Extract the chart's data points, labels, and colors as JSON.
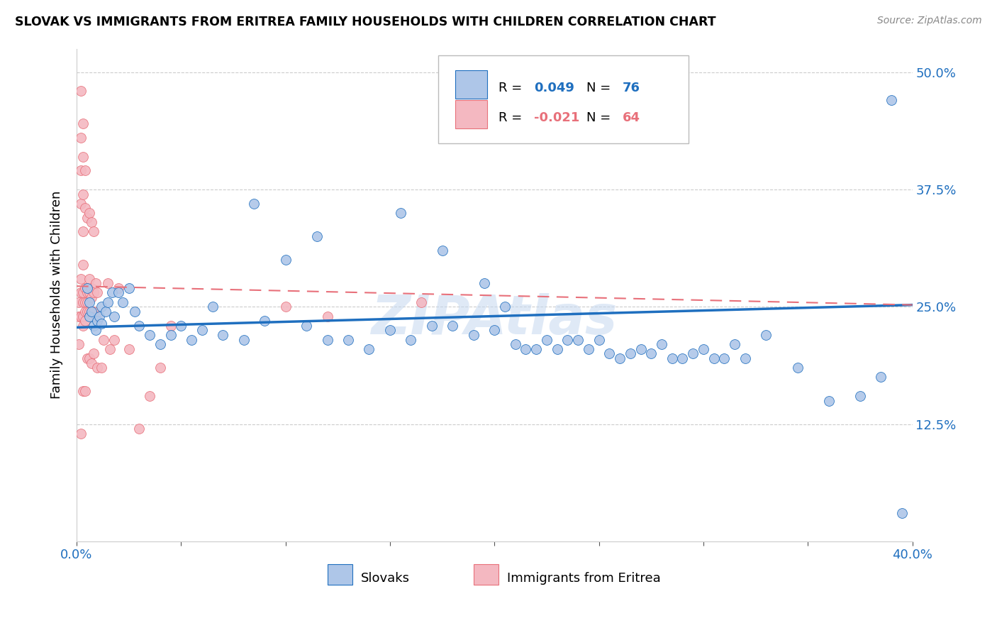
{
  "title": "SLOVAK VS IMMIGRANTS FROM ERITREA FAMILY HOUSEHOLDS WITH CHILDREN CORRELATION CHART",
  "source": "Source: ZipAtlas.com",
  "ylabel": "Family Households with Children",
  "xlabel_slovaks": "Slovaks",
  "xlabel_eritrea": "Immigrants from Eritrea",
  "xlim": [
    0.0,
    0.4
  ],
  "ylim": [
    0.0,
    0.525
  ],
  "yticks": [
    0.125,
    0.25,
    0.375,
    0.5
  ],
  "ytick_labels": [
    "12.5%",
    "25.0%",
    "37.5%",
    "50.0%"
  ],
  "xtick_positions": [
    0.0,
    0.05,
    0.1,
    0.15,
    0.2,
    0.25,
    0.3,
    0.35,
    0.4
  ],
  "xtick_labels": [
    "0.0%",
    "",
    "",
    "",
    "",
    "",
    "",
    "",
    "40.0%"
  ],
  "R_slovak": 0.049,
  "N_slovak": 76,
  "R_eritrea": -0.021,
  "N_eritrea": 64,
  "color_slovak": "#aec6e8",
  "color_eritrea": "#f4b8c1",
  "line_color_slovak": "#1f6fbf",
  "line_color_eritrea": "#e8707a",
  "watermark": "ZIPAtlas",
  "sk_trend_y0": 0.228,
  "sk_trend_y1": 0.252,
  "er_trend_y0": 0.272,
  "er_trend_y1": 0.252,
  "slovak_x": [
    0.005,
    0.006,
    0.006,
    0.007,
    0.008,
    0.009,
    0.01,
    0.011,
    0.012,
    0.012,
    0.014,
    0.015,
    0.017,
    0.018,
    0.02,
    0.022,
    0.025,
    0.028,
    0.03,
    0.035,
    0.04,
    0.045,
    0.05,
    0.055,
    0.06,
    0.065,
    0.07,
    0.08,
    0.085,
    0.09,
    0.1,
    0.11,
    0.115,
    0.12,
    0.13,
    0.14,
    0.15,
    0.155,
    0.16,
    0.17,
    0.175,
    0.18,
    0.19,
    0.195,
    0.2,
    0.205,
    0.21,
    0.215,
    0.22,
    0.225,
    0.23,
    0.235,
    0.24,
    0.245,
    0.25,
    0.255,
    0.26,
    0.265,
    0.27,
    0.275,
    0.28,
    0.285,
    0.29,
    0.295,
    0.3,
    0.305,
    0.31,
    0.315,
    0.32,
    0.33,
    0.345,
    0.36,
    0.375,
    0.385,
    0.39,
    0.395
  ],
  "slovak_y": [
    0.27,
    0.255,
    0.24,
    0.245,
    0.23,
    0.225,
    0.235,
    0.24,
    0.25,
    0.232,
    0.245,
    0.255,
    0.265,
    0.24,
    0.265,
    0.255,
    0.27,
    0.245,
    0.23,
    0.22,
    0.21,
    0.22,
    0.23,
    0.215,
    0.225,
    0.25,
    0.22,
    0.215,
    0.36,
    0.235,
    0.3,
    0.23,
    0.325,
    0.215,
    0.215,
    0.205,
    0.225,
    0.35,
    0.215,
    0.23,
    0.31,
    0.23,
    0.22,
    0.275,
    0.225,
    0.25,
    0.21,
    0.205,
    0.205,
    0.215,
    0.205,
    0.215,
    0.215,
    0.205,
    0.215,
    0.2,
    0.195,
    0.2,
    0.205,
    0.2,
    0.21,
    0.195,
    0.195,
    0.2,
    0.205,
    0.195,
    0.195,
    0.21,
    0.195,
    0.22,
    0.185,
    0.15,
    0.155,
    0.175,
    0.47,
    0.03
  ],
  "eritrea_x": [
    0.001,
    0.001,
    0.001,
    0.002,
    0.002,
    0.002,
    0.002,
    0.002,
    0.002,
    0.002,
    0.002,
    0.003,
    0.003,
    0.003,
    0.003,
    0.003,
    0.003,
    0.003,
    0.003,
    0.003,
    0.003,
    0.004,
    0.004,
    0.004,
    0.004,
    0.004,
    0.004,
    0.004,
    0.005,
    0.005,
    0.005,
    0.005,
    0.005,
    0.006,
    0.006,
    0.006,
    0.006,
    0.006,
    0.007,
    0.007,
    0.007,
    0.007,
    0.008,
    0.008,
    0.008,
    0.008,
    0.009,
    0.009,
    0.01,
    0.01,
    0.012,
    0.013,
    0.015,
    0.016,
    0.018,
    0.02,
    0.025,
    0.03,
    0.035,
    0.04,
    0.045,
    0.1,
    0.12,
    0.165
  ],
  "eritrea_y": [
    0.255,
    0.24,
    0.21,
    0.48,
    0.43,
    0.395,
    0.36,
    0.28,
    0.265,
    0.24,
    0.115,
    0.445,
    0.41,
    0.37,
    0.33,
    0.295,
    0.265,
    0.255,
    0.24,
    0.23,
    0.16,
    0.395,
    0.355,
    0.27,
    0.255,
    0.245,
    0.235,
    0.16,
    0.345,
    0.265,
    0.255,
    0.245,
    0.195,
    0.35,
    0.28,
    0.265,
    0.245,
    0.195,
    0.34,
    0.27,
    0.26,
    0.19,
    0.33,
    0.265,
    0.245,
    0.2,
    0.275,
    0.24,
    0.265,
    0.185,
    0.185,
    0.215,
    0.275,
    0.205,
    0.215,
    0.27,
    0.205,
    0.12,
    0.155,
    0.185,
    0.23,
    0.25,
    0.24,
    0.255
  ]
}
